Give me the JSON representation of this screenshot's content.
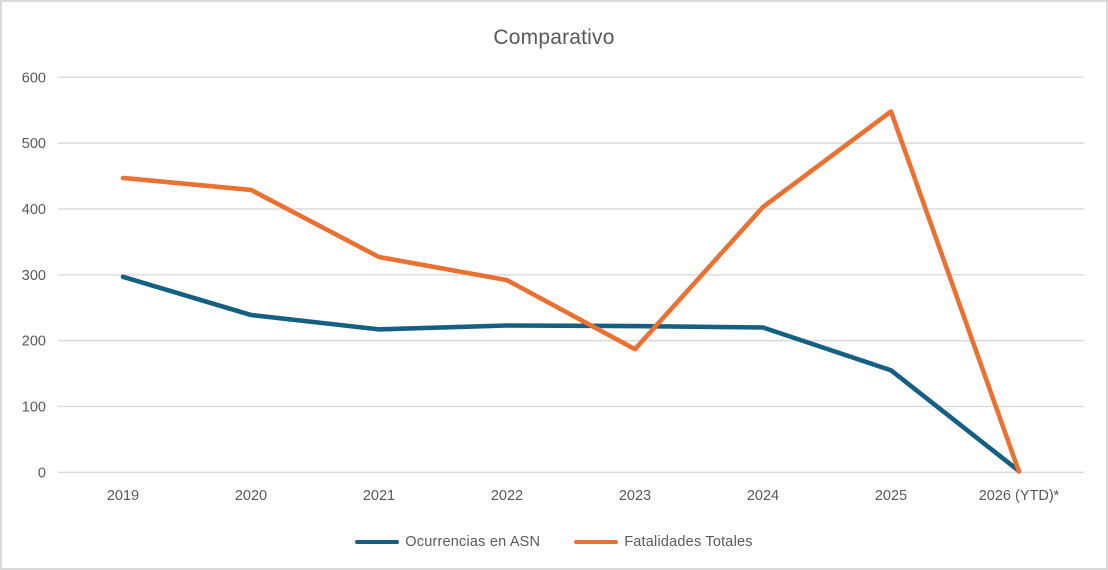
{
  "title": "Comparativo",
  "colors": {
    "series_blue": "#156082",
    "series_orange": "#E97132",
    "text_gray": "#595959",
    "gridline": "#d9d9d9",
    "background": "#ffffff",
    "frame_border": "#d9d9d9"
  },
  "chart_data": {
    "type": "line",
    "title": "Comparativo",
    "categories": [
      "2019",
      "2020",
      "2021",
      "2022",
      "2023",
      "2024",
      "2025",
      "2026 (YTD)*"
    ],
    "series": [
      {
        "name": "Ocurrencias en ASN",
        "color": "#156082",
        "values": [
          297,
          239,
          217,
          223,
          222,
          220,
          155,
          2
        ]
      },
      {
        "name": "Fatalidades Totales",
        "color": "#E97132",
        "values": [
          447,
          429,
          327,
          292,
          187,
          403,
          548,
          1
        ]
      }
    ],
    "xlabel": "",
    "ylabel": "",
    "ylim": [
      0,
      600
    ],
    "yticks": [
      0,
      100,
      200,
      300,
      400,
      500,
      600
    ],
    "grid": "horizontal",
    "legend_position": "bottom"
  }
}
